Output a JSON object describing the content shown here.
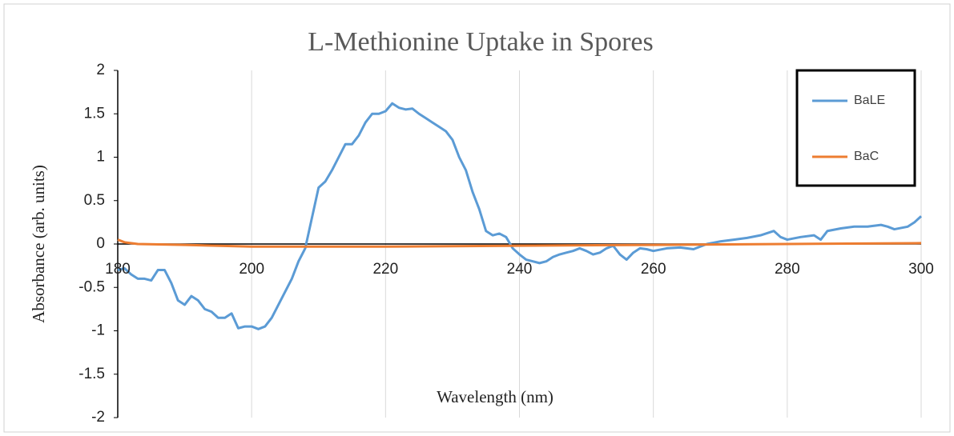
{
  "chart_data": {
    "type": "line",
    "title": "L-Methionine Uptake in Spores",
    "x_label": "Wavelength (nm)",
    "y_label": "Absorbance (arb. units)",
    "xlim": [
      180,
      300
    ],
    "xticks": [
      180,
      200,
      220,
      240,
      260,
      280,
      300
    ],
    "ylim": [
      -2,
      2
    ],
    "yticks": [
      -2,
      -1.5,
      -1,
      -0.5,
      0,
      0.5,
      1,
      1.5,
      2
    ],
    "grid": true,
    "legend": "upper right",
    "series": [
      {
        "name": "BaLE",
        "color": "#5b9bd5",
        "x": [
          180,
          181,
          182,
          183,
          184,
          185,
          186,
          187,
          188,
          189,
          190,
          191,
          192,
          193,
          194,
          195,
          196,
          197,
          198,
          199,
          200,
          201,
          202,
          203,
          204,
          205,
          206,
          207,
          208,
          209,
          210,
          211,
          212,
          213,
          214,
          215,
          216,
          217,
          218,
          219,
          220,
          221,
          222,
          223,
          224,
          225,
          226,
          227,
          228,
          229,
          230,
          231,
          232,
          233,
          234,
          235,
          236,
          237,
          238,
          239,
          240,
          241,
          242,
          243,
          244,
          245,
          246,
          247,
          248,
          249,
          250,
          251,
          252,
          253,
          254,
          255,
          256,
          257,
          258,
          259,
          260,
          262,
          264,
          266,
          268,
          270,
          272,
          274,
          276,
          278,
          279,
          280,
          282,
          284,
          285,
          286,
          288,
          290,
          292,
          294,
          295,
          296,
          298,
          299,
          300
        ],
        "values": [
          -0.3,
          -0.28,
          -0.35,
          -0.4,
          -0.4,
          -0.42,
          -0.3,
          -0.3,
          -0.45,
          -0.65,
          -0.7,
          -0.6,
          -0.65,
          -0.75,
          -0.78,
          -0.85,
          -0.85,
          -0.8,
          -0.97,
          -0.95,
          -0.95,
          -0.98,
          -0.95,
          -0.85,
          -0.7,
          -0.55,
          -0.4,
          -0.2,
          -0.05,
          0.3,
          0.65,
          0.72,
          0.85,
          1.0,
          1.15,
          1.15,
          1.25,
          1.4,
          1.5,
          1.5,
          1.53,
          1.62,
          1.57,
          1.55,
          1.56,
          1.5,
          1.45,
          1.4,
          1.35,
          1.3,
          1.2,
          1.0,
          0.85,
          0.6,
          0.4,
          0.15,
          0.1,
          0.12,
          0.08,
          -0.05,
          -0.12,
          -0.18,
          -0.2,
          -0.22,
          -0.2,
          -0.15,
          -0.12,
          -0.1,
          -0.08,
          -0.05,
          -0.08,
          -0.12,
          -0.1,
          -0.05,
          -0.02,
          -0.12,
          -0.18,
          -0.1,
          -0.05,
          -0.06,
          -0.08,
          -0.05,
          -0.04,
          -0.06,
          0.0,
          0.03,
          0.05,
          0.07,
          0.1,
          0.15,
          0.08,
          0.05,
          0.08,
          0.1,
          0.05,
          0.15,
          0.18,
          0.2,
          0.2,
          0.22,
          0.2,
          0.17,
          0.2,
          0.25,
          0.32
        ]
      },
      {
        "name": "BaC",
        "color": "#ed7d31",
        "x": [
          180,
          181,
          183,
          190,
          200,
          210,
          220,
          240,
          260,
          280,
          300
        ],
        "values": [
          0.05,
          0.02,
          0.0,
          -0.01,
          -0.03,
          -0.03,
          -0.03,
          -0.02,
          -0.01,
          0.0,
          0.01
        ]
      }
    ]
  }
}
